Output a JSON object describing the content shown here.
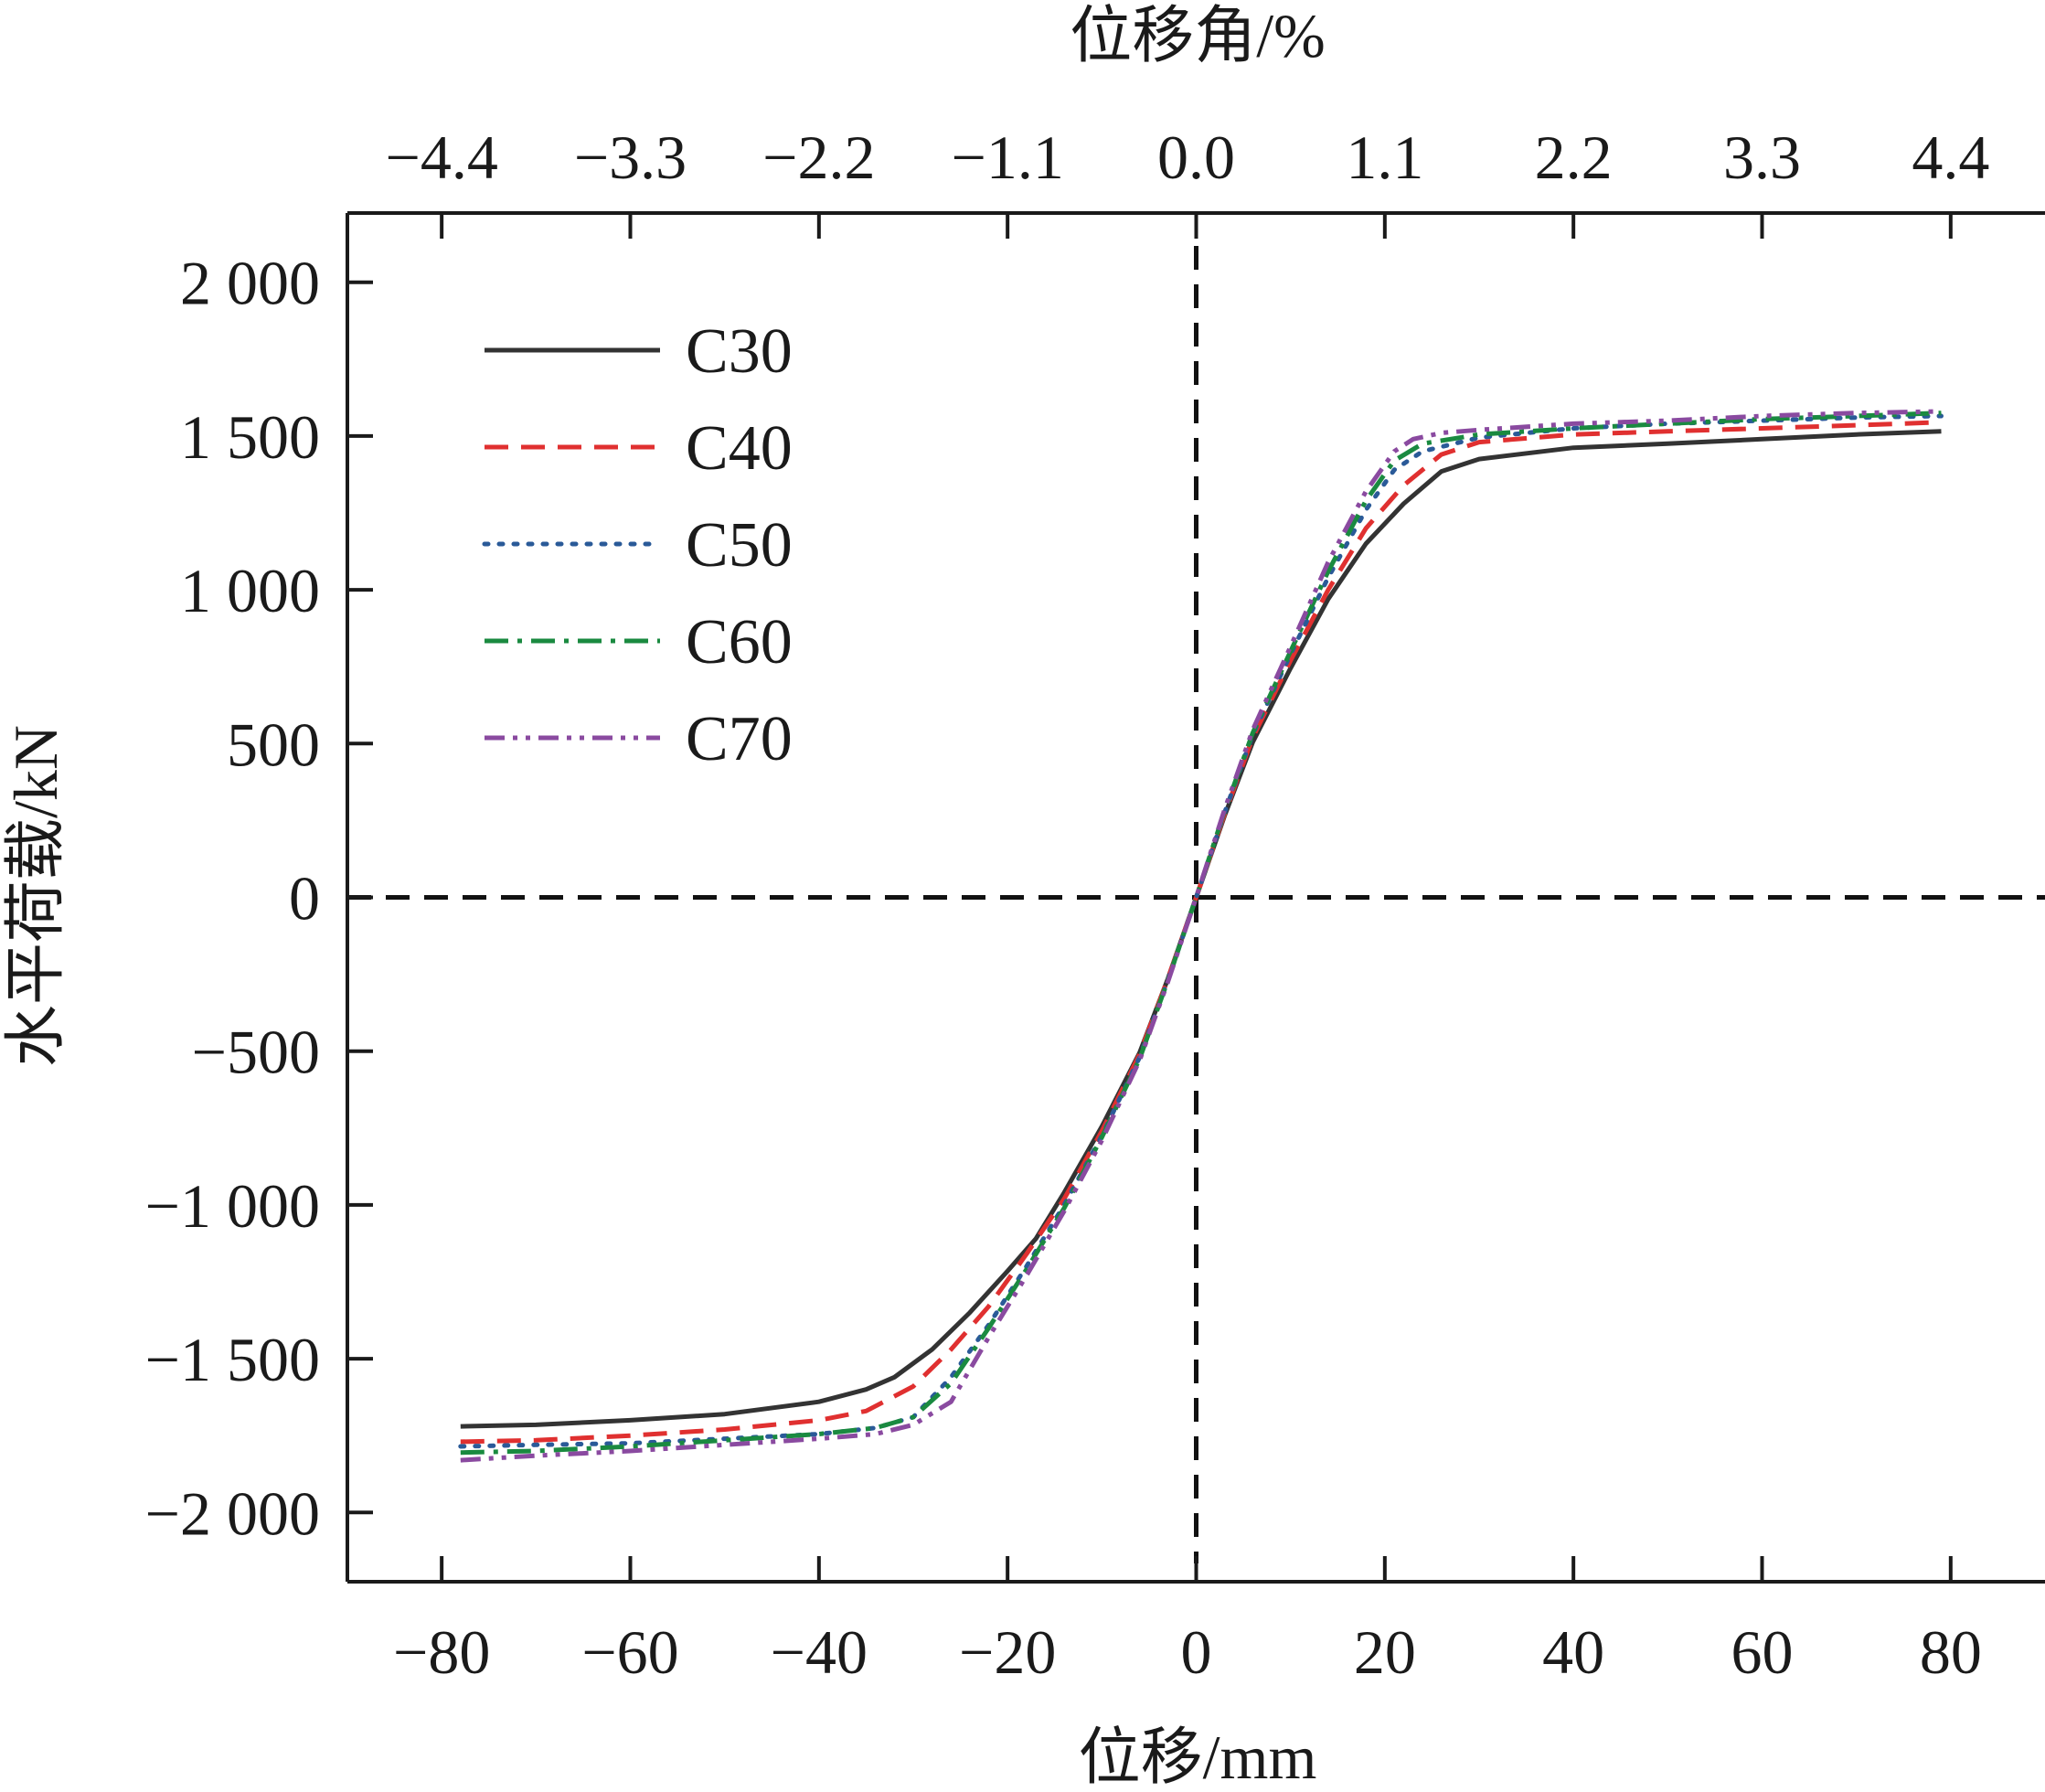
{
  "chart_data": {
    "type": "line",
    "xlabel": "位移/mm",
    "ylabel": "水平荷载/kN",
    "x2label": "位移角/%",
    "xlim": [
      -90,
      90
    ],
    "ylim": [
      -2225,
      2225
    ],
    "x_ticks": [
      -80,
      -60,
      -40,
      -20,
      0,
      20,
      40,
      60,
      80
    ],
    "x_tick_labels": [
      "−80",
      "−60",
      "−40",
      "−20",
      "0",
      "20",
      "40",
      "60",
      "80"
    ],
    "x2_ticks": [
      -80,
      -60,
      -40,
      -20,
      0,
      20,
      40,
      60,
      80
    ],
    "x2_tick_labels": [
      "−4.4",
      "−3.3",
      "−2.2",
      "−1.1",
      "0.0",
      "1.1",
      "2.2",
      "3.3",
      "4.4"
    ],
    "y_ticks": [
      -2000,
      -1500,
      -1000,
      -500,
      0,
      500,
      1000,
      1500,
      2000
    ],
    "y_tick_labels": [
      "−2 000",
      "−1 500",
      "−1 000",
      "−500",
      "0",
      "500",
      "1 000",
      "1 500",
      "2 000"
    ],
    "reference_lines": {
      "x": 0,
      "y": 0
    },
    "grid": false,
    "legend_position": "top-left",
    "series": [
      {
        "name": "C30",
        "color": "#333333",
        "dash": "solid",
        "x": [
          -78,
          -70,
          -60,
          -50,
          -40,
          -35,
          -32,
          -28,
          -24,
          -20,
          -17,
          -14,
          -10,
          -6,
          -3,
          0,
          3,
          6,
          10,
          14,
          18,
          22,
          26,
          30,
          40,
          50,
          60,
          70,
          79
        ],
        "y": [
          -1720,
          -1715,
          -1700,
          -1680,
          -1640,
          -1600,
          -1560,
          -1470,
          -1350,
          -1215,
          -1110,
          -960,
          -745,
          -505,
          -265,
          0,
          265,
          505,
          745,
          970,
          1150,
          1280,
          1385,
          1425,
          1462,
          1475,
          1490,
          1505,
          1515
        ]
      },
      {
        "name": "C40",
        "color": "#e03030",
        "dash": "dashed",
        "x": [
          -78,
          -70,
          -60,
          -50,
          -40,
          -35,
          -30,
          -26,
          -22,
          -18,
          -14,
          -10,
          -6,
          -3,
          0,
          3,
          6,
          10,
          14,
          18,
          22,
          26,
          30,
          40,
          50,
          60,
          70,
          79
        ],
        "y": [
          -1770,
          -1765,
          -1750,
          -1730,
          -1700,
          -1670,
          -1590,
          -1470,
          -1330,
          -1160,
          -980,
          -760,
          -510,
          -265,
          0,
          270,
          520,
          770,
          1000,
          1200,
          1340,
          1440,
          1480,
          1505,
          1515,
          1525,
          1535,
          1545
        ]
      },
      {
        "name": "C50",
        "color": "#2a5a98",
        "dash": "dotted",
        "x": [
          -78,
          -70,
          -60,
          -50,
          -40,
          -34,
          -30,
          -26,
          -22,
          -18,
          -14,
          -10,
          -6,
          -3,
          0,
          3,
          6,
          10,
          14,
          18,
          21,
          24,
          30,
          40,
          50,
          60,
          70,
          79
        ],
        "y": [
          -1785,
          -1780,
          -1775,
          -1760,
          -1745,
          -1725,
          -1690,
          -1560,
          -1390,
          -1200,
          -1000,
          -775,
          -520,
          -270,
          0,
          275,
          530,
          790,
          1040,
          1260,
          1390,
          1450,
          1495,
          1525,
          1540,
          1550,
          1560,
          1565
        ]
      },
      {
        "name": "C60",
        "color": "#1a8a40",
        "dash": "dashdot",
        "x": [
          -78,
          -70,
          -60,
          -50,
          -40,
          -34,
          -30,
          -26,
          -22,
          -18,
          -14,
          -10,
          -6,
          -3,
          0,
          3,
          6,
          10,
          14,
          18,
          21,
          24,
          30,
          40,
          50,
          60,
          70,
          79
        ],
        "y": [
          -1805,
          -1800,
          -1785,
          -1765,
          -1745,
          -1725,
          -1690,
          -1580,
          -1400,
          -1210,
          -1010,
          -780,
          -525,
          -270,
          0,
          280,
          535,
          800,
          1060,
          1290,
          1420,
          1475,
          1505,
          1525,
          1540,
          1555,
          1565,
          1575
        ]
      },
      {
        "name": "C70",
        "color": "#8a4aa0",
        "dash": "dashdotdot",
        "x": [
          -78,
          -70,
          -60,
          -50,
          -40,
          -34,
          -30,
          -26,
          -22,
          -18,
          -14,
          -10,
          -6,
          -3,
          0,
          3,
          6,
          10,
          14,
          18,
          21,
          23,
          26,
          30,
          40,
          50,
          60,
          70,
          79
        ],
        "y": [
          -1830,
          -1815,
          -1800,
          -1780,
          -1760,
          -1745,
          -1715,
          -1640,
          -1430,
          -1230,
          -1020,
          -790,
          -530,
          -275,
          0,
          285,
          545,
          815,
          1090,
          1320,
          1450,
          1490,
          1510,
          1520,
          1540,
          1550,
          1565,
          1575,
          1580
        ]
      }
    ]
  }
}
